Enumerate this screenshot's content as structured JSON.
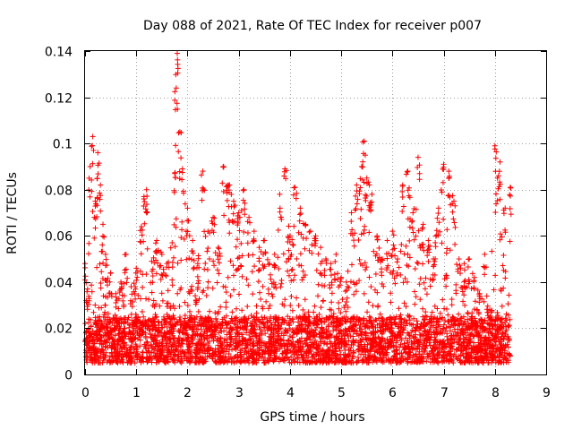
{
  "chart_data": {
    "type": "scatter",
    "title": "Day 088 of 2021, Rate Of TEC Index for receiver p007",
    "xlabel": "GPS time / hours",
    "ylabel": "ROTI / TECUs",
    "xlim": [
      0,
      9
    ],
    "ylim": [
      0,
      0.14
    ],
    "xticks": [
      0,
      1,
      2,
      3,
      4,
      5,
      6,
      7,
      8,
      9
    ],
    "yticks": [
      0,
      0.02,
      0.04,
      0.06,
      0.08,
      0.1,
      0.12,
      0.14
    ],
    "xtick_labels": [
      "0",
      "1",
      "2",
      "3",
      "4",
      "5",
      "6",
      "7",
      "8",
      "9"
    ],
    "ytick_labels": [
      "0",
      "0.02",
      "0.04",
      "0.06",
      "0.08",
      "0.1",
      "0.12",
      "0.14"
    ],
    "grid": true,
    "marker": "+",
    "color": "#ff0000",
    "data_x_range": [
      0,
      8.3
    ],
    "baseline_band": [
      0.005,
      0.025
    ],
    "series": [
      {
        "name": "ROTI",
        "x": [
          0.0,
          0.05,
          0.1,
          0.15,
          0.2,
          0.25,
          0.3,
          0.35,
          0.4,
          0.5,
          0.6,
          0.7,
          0.8,
          0.9,
          1.0,
          1.1,
          1.15,
          1.2,
          1.3,
          1.4,
          1.5,
          1.6,
          1.7,
          1.75,
          1.78,
          1.8,
          1.85,
          1.9,
          2.0,
          2.1,
          2.2,
          2.3,
          2.4,
          2.5,
          2.6,
          2.7,
          2.8,
          2.9,
          3.0,
          3.1,
          3.2,
          3.3,
          3.4,
          3.5,
          3.6,
          3.7,
          3.8,
          3.9,
          4.0,
          4.1,
          4.2,
          4.3,
          4.4,
          4.5,
          4.6,
          4.7,
          4.8,
          4.9,
          5.0,
          5.1,
          5.2,
          5.3,
          5.4,
          5.45,
          5.5,
          5.55,
          5.6,
          5.7,
          5.8,
          5.9,
          6.0,
          6.1,
          6.2,
          6.3,
          6.4,
          6.5,
          6.6,
          6.7,
          6.8,
          6.9,
          7.0,
          7.1,
          7.2,
          7.3,
          7.4,
          7.5,
          7.6,
          7.7,
          7.8,
          7.9,
          8.0,
          8.05,
          8.1,
          8.2,
          8.3
        ],
        "y": [
          0.048,
          0.037,
          0.09,
          0.103,
          0.075,
          0.096,
          0.082,
          0.065,
          0.052,
          0.044,
          0.035,
          0.04,
          0.052,
          0.038,
          0.046,
          0.064,
          0.077,
          0.08,
          0.049,
          0.058,
          0.052,
          0.048,
          0.057,
          0.087,
          0.124,
          0.139,
          0.105,
          0.089,
          0.072,
          0.058,
          0.048,
          0.088,
          0.062,
          0.068,
          0.055,
          0.09,
          0.082,
          0.075,
          0.07,
          0.08,
          0.068,
          0.062,
          0.055,
          0.058,
          0.048,
          0.052,
          0.078,
          0.089,
          0.06,
          0.081,
          0.072,
          0.065,
          0.062,
          0.06,
          0.055,
          0.05,
          0.048,
          0.052,
          0.042,
          0.04,
          0.07,
          0.082,
          0.09,
          0.101,
          0.085,
          0.082,
          0.078,
          0.06,
          0.05,
          0.058,
          0.062,
          0.05,
          0.082,
          0.088,
          0.07,
          0.094,
          0.065,
          0.058,
          0.05,
          0.072,
          0.091,
          0.088,
          0.075,
          0.05,
          0.048,
          0.05,
          0.042,
          0.035,
          0.052,
          0.028,
          0.099,
          0.085,
          0.092,
          0.072,
          0.081
        ]
      }
    ]
  }
}
